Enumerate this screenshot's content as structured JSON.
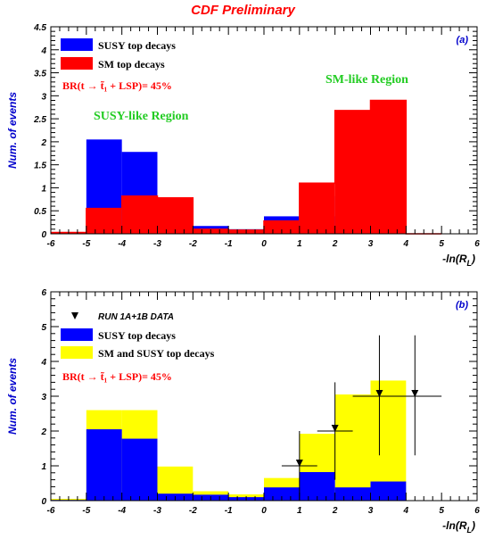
{
  "header": {
    "title": "CDF Preliminary"
  },
  "colors": {
    "susy": "#0000ff",
    "sm": "#ff0000",
    "combined": "#ffff00",
    "region": "#22cc22",
    "ylabel": "#0000cc",
    "title": "#ff0000"
  },
  "chart_data": [
    {
      "type": "bar",
      "panel_label": "(a)",
      "xlabel": "-ln(R_L)",
      "ylabel": "Num. of events",
      "xlim": [
        -6,
        6
      ],
      "ylim": [
        0,
        4.5
      ],
      "xticks": [
        -6,
        -5,
        -4,
        -3,
        -2,
        -1,
        0,
        1,
        2,
        3,
        4,
        5,
        6
      ],
      "yticks": [
        0,
        0.5,
        1,
        1.5,
        2,
        2.5,
        3,
        3.5,
        4,
        4.5
      ],
      "bin_edges": [
        -6,
        -5,
        -4,
        -3,
        -2,
        -1,
        0,
        1,
        2,
        3,
        4,
        5
      ],
      "series": [
        {
          "name": "SUSY top decays",
          "style": "filled",
          "color": "#0000ff",
          "values": [
            0.02,
            2.05,
            1.78,
            0.2,
            0.17,
            0.1,
            0.38,
            0.82,
            0.38,
            0.55,
            0
          ]
        },
        {
          "name": "SM top decays",
          "style": "filled",
          "color": "#ff0000",
          "values": [
            0.03,
            0.55,
            0.82,
            0.78,
            0.1,
            0.08,
            0.28,
            1.1,
            2.68,
            2.9,
            0
          ]
        }
      ],
      "annotations": [
        "BR(t → t̃₁ + LSP)= 45%",
        "SUSY-like Region",
        "SM-like Region"
      ],
      "legend_position": "top-left"
    },
    {
      "type": "bar",
      "panel_label": "(b)",
      "xlabel": "-ln(R_L)",
      "ylabel": "Num. of events",
      "xlim": [
        -6,
        6
      ],
      "ylim": [
        0,
        6
      ],
      "xticks": [
        -6,
        -5,
        -4,
        -3,
        -2,
        -1,
        0,
        1,
        2,
        3,
        4,
        5,
        6
      ],
      "yticks": [
        0,
        1,
        2,
        3,
        4,
        5,
        6
      ],
      "bin_edges": [
        -6,
        -5,
        -4,
        -3,
        -2,
        -1,
        0,
        1,
        2,
        3,
        4,
        5
      ],
      "series": [
        {
          "name": "SM and SUSY top decays",
          "style": "filled",
          "color": "#ffff00",
          "values": [
            0.05,
            2.6,
            2.6,
            0.98,
            0.27,
            0.18,
            0.65,
            1.92,
            3.05,
            3.45,
            0
          ]
        },
        {
          "name": "SUSY top decays",
          "style": "filled",
          "color": "#0000ff",
          "values": [
            0.02,
            2.05,
            1.78,
            0.2,
            0.17,
            0.1,
            0.38,
            0.82,
            0.38,
            0.55,
            0
          ]
        },
        {
          "name": "RUN 1A+1B DATA",
          "style": "points",
          "color": "#000000",
          "points": [
            {
              "x": 1,
              "y": 1,
              "err_low": 0,
              "err_high": 2,
              "xerr": 0.5
            },
            {
              "x": 2,
              "y": 2,
              "err_low": 0.6,
              "err_high": 3.4,
              "xerr": 0.5
            },
            {
              "x": 3.25,
              "y": 3,
              "err_low": 1.3,
              "err_high": 4.75,
              "xerr": 0.75
            },
            {
              "x": 4.25,
              "y": 3,
              "err_low": 1.3,
              "err_high": 4.75,
              "xerr": 0.75
            }
          ]
        }
      ],
      "annotations": [
        "BR(t → t̃₁ + LSP)= 45%"
      ],
      "legend_position": "top-left"
    }
  ]
}
